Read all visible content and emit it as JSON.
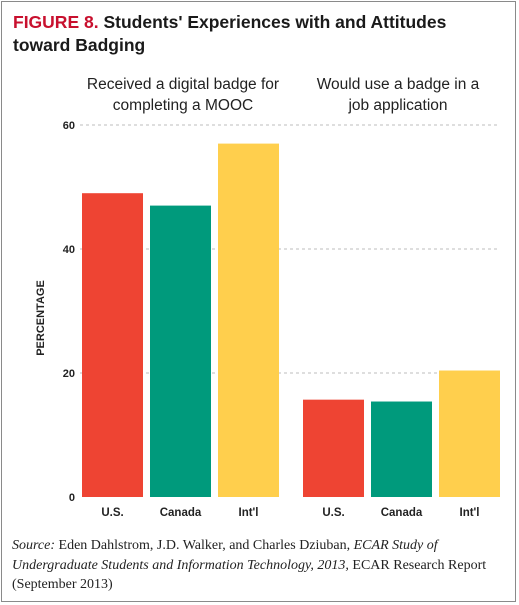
{
  "figure": {
    "number": "FIGURE 8.",
    "title": "Students' Experiences with and Attitudes toward Badging"
  },
  "chart_data": {
    "type": "bar",
    "title": "Students' Experiences with and Attitudes toward Badging",
    "ylabel": "PERCENTAGE",
    "xlabel": "",
    "ylim": [
      0,
      60
    ],
    "yticks": [
      0,
      20,
      40,
      60
    ],
    "grid": true,
    "legend": "none",
    "groups": [
      {
        "label": "Received a digital badge for completing a MOOC",
        "categories": [
          "U.S.",
          "Canada",
          "Int'l"
        ],
        "values": [
          49,
          47,
          57
        ]
      },
      {
        "label": "Would use a badge in a job application",
        "categories": [
          "U.S.",
          "Canada",
          "Int'l"
        ],
        "values": [
          15.7,
          15.4,
          20.4
        ]
      }
    ],
    "colors": [
      "#ee4433",
      "#009a7c",
      "#ffcf4d"
    ]
  },
  "source": {
    "label": "Source:",
    "authors": "Eden Dahlstrom, J.D. Walker, and Charles Dziuban,",
    "publication": "ECAR Study of Undergraduate Students and Information Technology, 2013,",
    "rest": "ECAR Research Report (September 2013)"
  }
}
